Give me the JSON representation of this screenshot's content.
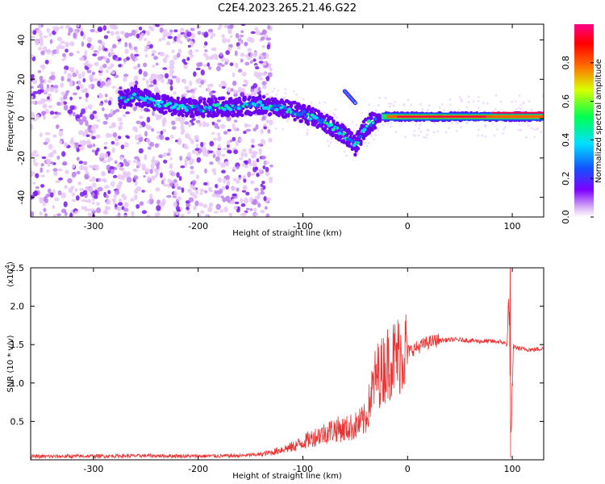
{
  "figure": {
    "title": "C2E4.2023.265.21.46.G22"
  },
  "chart_data": [
    {
      "type": "heatmap",
      "title": "C2E4.2023.265.21.46.G22",
      "xlabel": "Height of straight line (km)",
      "ylabel": "Frequency (Hz)",
      "xlim": [
        -360,
        130
      ],
      "ylim": [
        -50,
        48
      ],
      "xticks": [
        -300,
        -200,
        -100,
        0,
        100
      ],
      "yticks": [
        -40,
        -20,
        0,
        20,
        40
      ],
      "colorbar": {
        "label": "Normalized spectral amplitude",
        "range": [
          0,
          1
        ],
        "ticks": [
          "0.0",
          "0.2",
          "0.4",
          "0.6",
          "0.8"
        ],
        "colors": [
          "#ffffff",
          "#d8b0f4",
          "#7f00ff",
          "#1450ff",
          "#00e0ff",
          "#00ff50",
          "#d8ff00",
          "#ff7000",
          "#ff0000",
          "#ff0088"
        ]
      },
      "ridge": {
        "x": [
          -275,
          -260,
          -240,
          -220,
          -200,
          -180,
          -160,
          -140,
          -120,
          -100,
          -80,
          -60,
          -50,
          -40,
          -30,
          -20,
          0,
          50,
          100,
          130
        ],
        "y": [
          9,
          12,
          8,
          6,
          5,
          6,
          6,
          7,
          5,
          3,
          -2,
          -8,
          -14,
          -4,
          0,
          1,
          1,
          1,
          1,
          1
        ]
      },
      "noise_x_range": [
        -360,
        -130
      ],
      "branch": {
        "x": [
          -60,
          -50
        ],
        "y": [
          14,
          8
        ]
      }
    },
    {
      "type": "line",
      "xlabel": "Height of straight line (km)",
      "ylabel": "SNR (10 * v/v)",
      "scale_label": "(x10",
      "scale_exp": "4",
      "scale_close": ")",
      "xlim": [
        -360,
        130
      ],
      "ylim": [
        0,
        25000
      ],
      "xticks": [
        -300,
        -200,
        -100,
        0,
        100
      ],
      "yticks": [
        5000,
        10000,
        15000,
        20000,
        25000
      ],
      "ytick_labels": [
        "0.5",
        "1.0",
        "1.5",
        "2.0",
        "2.5"
      ],
      "series_color": "#ee3333",
      "x": [
        -360,
        -300,
        -250,
        -200,
        -160,
        -140,
        -130,
        -120,
        -110,
        -100,
        -90,
        -80,
        -70,
        -60,
        -50,
        -40,
        -35,
        -30,
        -25,
        -20,
        -15,
        -10,
        0,
        10,
        20,
        30,
        40,
        50,
        60,
        70,
        80,
        90,
        95,
        97,
        99,
        101,
        105,
        110,
        120,
        130
      ],
      "y": [
        400,
        450,
        500,
        450,
        500,
        700,
        900,
        1300,
        1600,
        2200,
        2800,
        3300,
        3800,
        3800,
        4200,
        5000,
        8000,
        10500,
        11000,
        12000,
        12500,
        13000,
        14000,
        14600,
        15200,
        15500,
        15600,
        15600,
        15500,
        15400,
        15400,
        15300,
        15000,
        21000,
        400,
        14800,
        14500,
        14400,
        14300,
        14500
      ]
    }
  ]
}
